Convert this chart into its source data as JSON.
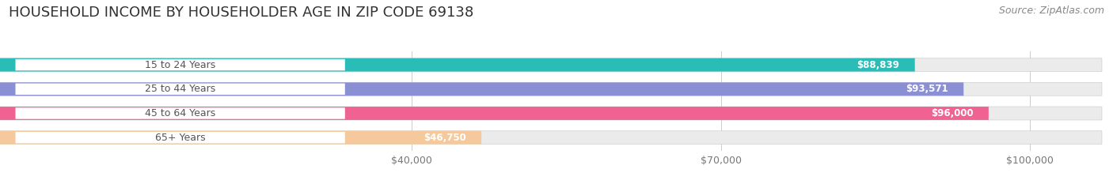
{
  "title": "HOUSEHOLD INCOME BY HOUSEHOLDER AGE IN ZIP CODE 69138",
  "source": "Source: ZipAtlas.com",
  "categories": [
    "15 to 24 Years",
    "25 to 44 Years",
    "45 to 64 Years",
    "65+ Years"
  ],
  "values": [
    88839,
    93571,
    96000,
    46750
  ],
  "bar_colors": [
    "#2abcb7",
    "#8b8fd4",
    "#f06292",
    "#f5c99b"
  ],
  "value_labels": [
    "$88,839",
    "$93,571",
    "$96,000",
    "$46,750"
  ],
  "x_ticks": [
    40000,
    70000,
    100000
  ],
  "x_tick_labels": [
    "$40,000",
    "$70,000",
    "$100,000"
  ],
  "xlim_max": 107000,
  "background_color": "#ffffff",
  "bar_bg_color": "#ebebeb",
  "title_fontsize": 13,
  "source_fontsize": 9,
  "label_fontsize": 9,
  "value_fontsize": 8.5,
  "tick_fontsize": 9
}
